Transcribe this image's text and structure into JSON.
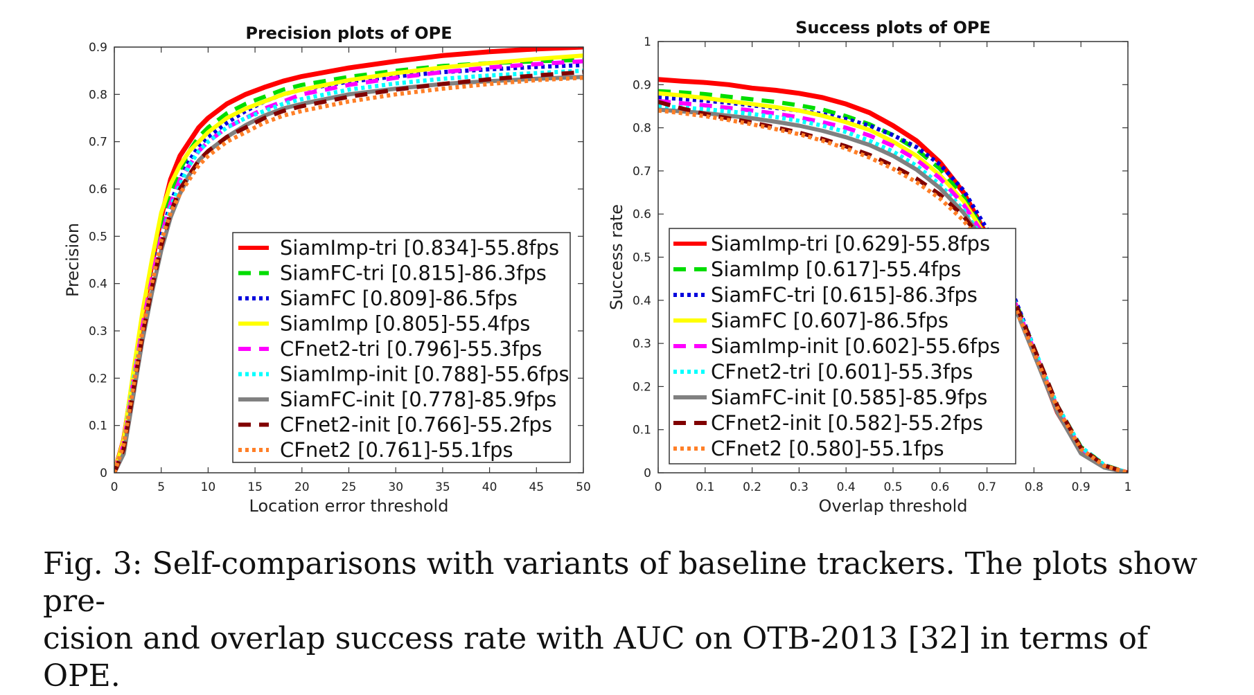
{
  "caption": {
    "label": "Fig. 3:",
    "line1": "Self-comparisons with variants of baseline trackers. The plots show pre-",
    "line2": "cision and overlap success rate with AUC on OTB-2013 [32] in terms of OPE."
  },
  "chart_data": [
    {
      "type": "line",
      "title": "Precision plots of OPE",
      "xlabel": "Location error threshold",
      "ylabel": "Precision",
      "xlim": [
        0,
        50
      ],
      "ylim": [
        0,
        0.9
      ],
      "xticks": [
        "0",
        "5",
        "10",
        "15",
        "20",
        "25",
        "30",
        "35",
        "40",
        "45",
        "50"
      ],
      "yticks": [
        "0",
        "0.1",
        "0.2",
        "0.3",
        "0.4",
        "0.5",
        "0.6",
        "0.7",
        "0.8",
        "0.9"
      ],
      "grid": false,
      "legend_position": "bottom-right",
      "x": [
        0,
        1,
        2,
        3,
        4,
        5,
        6,
        7,
        8,
        9,
        10,
        12,
        14,
        16,
        18,
        20,
        25,
        30,
        35,
        40,
        45,
        50
      ],
      "series": [
        {
          "name": "SiamImp-tri [0.834]-55.8fps",
          "color": "#ff0000",
          "style": "solid",
          "values": [
            0.0,
            0.07,
            0.2,
            0.33,
            0.44,
            0.54,
            0.62,
            0.67,
            0.7,
            0.73,
            0.75,
            0.78,
            0.8,
            0.815,
            0.828,
            0.838,
            0.856,
            0.87,
            0.882,
            0.89,
            0.896,
            0.9
          ]
        },
        {
          "name": "SiamFC-tri [0.815]-86.3fps",
          "color": "#00dd00",
          "style": "dashed",
          "values": [
            0.0,
            0.06,
            0.19,
            0.31,
            0.42,
            0.51,
            0.59,
            0.64,
            0.68,
            0.71,
            0.73,
            0.76,
            0.78,
            0.795,
            0.81,
            0.82,
            0.837,
            0.85,
            0.86,
            0.866,
            0.87,
            0.873
          ]
        },
        {
          "name": "SiamFC [0.809]-86.5fps",
          "color": "#0000dd",
          "style": "dotted",
          "values": [
            0.0,
            0.06,
            0.18,
            0.3,
            0.41,
            0.5,
            0.57,
            0.62,
            0.66,
            0.69,
            0.71,
            0.74,
            0.765,
            0.785,
            0.8,
            0.81,
            0.827,
            0.838,
            0.847,
            0.853,
            0.858,
            0.862
          ]
        },
        {
          "name": "SiamImp [0.805]-55.4fps",
          "color": "#ffff00",
          "style": "solid",
          "values": [
            0.0,
            0.07,
            0.21,
            0.34,
            0.45,
            0.55,
            0.61,
            0.65,
            0.68,
            0.7,
            0.72,
            0.75,
            0.77,
            0.785,
            0.8,
            0.81,
            0.83,
            0.845,
            0.857,
            0.866,
            0.875,
            0.882
          ]
        },
        {
          "name": "CFnet2-tri [0.796]-55.3fps",
          "color": "#ff00ff",
          "style": "dashed",
          "values": [
            0.0,
            0.06,
            0.19,
            0.31,
            0.41,
            0.5,
            0.57,
            0.62,
            0.65,
            0.68,
            0.7,
            0.73,
            0.75,
            0.77,
            0.785,
            0.8,
            0.82,
            0.835,
            0.847,
            0.857,
            0.864,
            0.87
          ]
        },
        {
          "name": "SiamImp-init [0.788]-55.6fps",
          "color": "#00ffff",
          "style": "dotted",
          "values": [
            0.0,
            0.06,
            0.19,
            0.3,
            0.4,
            0.49,
            0.56,
            0.61,
            0.65,
            0.68,
            0.7,
            0.73,
            0.75,
            0.765,
            0.78,
            0.79,
            0.81,
            0.823,
            0.833,
            0.84,
            0.845,
            0.85
          ]
        },
        {
          "name": "SiamFC-init [0.778]-85.9fps",
          "color": "#808080",
          "style": "solid",
          "values": [
            0.0,
            0.04,
            0.16,
            0.28,
            0.38,
            0.47,
            0.54,
            0.59,
            0.63,
            0.66,
            0.68,
            0.71,
            0.735,
            0.755,
            0.77,
            0.78,
            0.8,
            0.812,
            0.822,
            0.828,
            0.833,
            0.837
          ]
        },
        {
          "name": "CFnet2-init [0.766]-55.2fps",
          "color": "#800000",
          "style": "dashed",
          "values": [
            0.0,
            0.05,
            0.17,
            0.29,
            0.39,
            0.48,
            0.55,
            0.6,
            0.63,
            0.66,
            0.68,
            0.71,
            0.73,
            0.75,
            0.765,
            0.775,
            0.795,
            0.81,
            0.822,
            0.832,
            0.84,
            0.847
          ]
        },
        {
          "name": "CFnet2 [0.761]-55.1fps",
          "color": "#ff7f27",
          "style": "dotted",
          "values": [
            0.0,
            0.06,
            0.18,
            0.3,
            0.4,
            0.49,
            0.55,
            0.59,
            0.62,
            0.65,
            0.67,
            0.7,
            0.72,
            0.74,
            0.755,
            0.765,
            0.785,
            0.8,
            0.812,
            0.822,
            0.83,
            0.835
          ]
        }
      ]
    },
    {
      "type": "line",
      "title": "Success plots of OPE",
      "xlabel": "Overlap threshold",
      "ylabel": "Success rate",
      "xlim": [
        0,
        1
      ],
      "ylim": [
        0,
        1
      ],
      "xticks": [
        "0",
        "0.1",
        "0.2",
        "0.3",
        "0.4",
        "0.5",
        "0.6",
        "0.7",
        "0.8",
        "0.9",
        "1"
      ],
      "yticks": [
        "0",
        "0.1",
        "0.2",
        "0.3",
        "0.4",
        "0.5",
        "0.6",
        "0.7",
        "0.8",
        "0.9",
        "1"
      ],
      "grid": false,
      "legend_position": "bottom-left",
      "x": [
        0,
        0.05,
        0.1,
        0.15,
        0.2,
        0.25,
        0.3,
        0.35,
        0.4,
        0.45,
        0.5,
        0.55,
        0.6,
        0.65,
        0.7,
        0.75,
        0.8,
        0.85,
        0.9,
        0.95,
        1.0
      ],
      "series": [
        {
          "name": "SiamImp-tri [0.629]-55.8fps",
          "color": "#ff0000",
          "style": "solid",
          "values": [
            0.912,
            0.908,
            0.905,
            0.9,
            0.892,
            0.887,
            0.88,
            0.87,
            0.855,
            0.835,
            0.805,
            0.77,
            0.72,
            0.65,
            0.55,
            0.42,
            0.28,
            0.14,
            0.05,
            0.015,
            0.0
          ]
        },
        {
          "name": "SiamImp [0.617]-55.4fps",
          "color": "#00dd00",
          "style": "dashed",
          "values": [
            0.885,
            0.882,
            0.878,
            0.872,
            0.866,
            0.86,
            0.852,
            0.842,
            0.827,
            0.808,
            0.783,
            0.75,
            0.705,
            0.64,
            0.55,
            0.425,
            0.29,
            0.155,
            0.06,
            0.018,
            0.0
          ]
        },
        {
          "name": "SiamFC-tri [0.615]-86.3fps",
          "color": "#0000dd",
          "style": "dotted",
          "values": [
            0.87,
            0.867,
            0.863,
            0.858,
            0.852,
            0.846,
            0.84,
            0.832,
            0.82,
            0.805,
            0.783,
            0.755,
            0.715,
            0.655,
            0.565,
            0.43,
            0.29,
            0.15,
            0.055,
            0.016,
            0.0
          ]
        },
        {
          "name": "SiamFC [0.607]-86.5fps",
          "color": "#ffff00",
          "style": "solid",
          "values": [
            0.88,
            0.875,
            0.869,
            0.862,
            0.855,
            0.848,
            0.84,
            0.828,
            0.813,
            0.795,
            0.768,
            0.735,
            0.69,
            0.63,
            0.545,
            0.42,
            0.285,
            0.15,
            0.055,
            0.016,
            0.0
          ]
        },
        {
          "name": "SiamImp-init [0.602]-55.6fps",
          "color": "#ff00ff",
          "style": "dashed",
          "values": [
            0.862,
            0.857,
            0.852,
            0.846,
            0.84,
            0.833,
            0.824,
            0.813,
            0.8,
            0.782,
            0.758,
            0.726,
            0.683,
            0.622,
            0.54,
            0.42,
            0.285,
            0.15,
            0.055,
            0.016,
            0.0
          ]
        },
        {
          "name": "CFnet2-tri [0.601]-55.3fps",
          "color": "#00ffff",
          "style": "dotted",
          "values": [
            0.85,
            0.847,
            0.843,
            0.838,
            0.832,
            0.825,
            0.816,
            0.805,
            0.79,
            0.77,
            0.745,
            0.712,
            0.668,
            0.61,
            0.53,
            0.42,
            0.29,
            0.155,
            0.06,
            0.018,
            0.0
          ]
        },
        {
          "name": "SiamFC-init [0.585]-85.9fps",
          "color": "#808080",
          "style": "solid",
          "values": [
            0.842,
            0.838,
            0.834,
            0.828,
            0.822,
            0.814,
            0.805,
            0.793,
            0.778,
            0.76,
            0.735,
            0.703,
            0.66,
            0.603,
            0.525,
            0.41,
            0.275,
            0.14,
            0.045,
            0.012,
            0.0
          ]
        },
        {
          "name": "CFnet2-init [0.582]-55.2fps",
          "color": "#800000",
          "style": "dashed",
          "values": [
            0.86,
            0.845,
            0.832,
            0.822,
            0.812,
            0.801,
            0.789,
            0.774,
            0.757,
            0.737,
            0.712,
            0.682,
            0.645,
            0.595,
            0.525,
            0.42,
            0.29,
            0.155,
            0.058,
            0.017,
            0.0
          ]
        },
        {
          "name": "CFnet2 [0.580]-55.1fps",
          "color": "#ff7f27",
          "style": "dotted",
          "values": [
            0.84,
            0.834,
            0.827,
            0.818,
            0.808,
            0.797,
            0.785,
            0.77,
            0.752,
            0.731,
            0.705,
            0.674,
            0.636,
            0.585,
            0.515,
            0.41,
            0.28,
            0.15,
            0.055,
            0.016,
            0.0
          ]
        }
      ]
    }
  ]
}
